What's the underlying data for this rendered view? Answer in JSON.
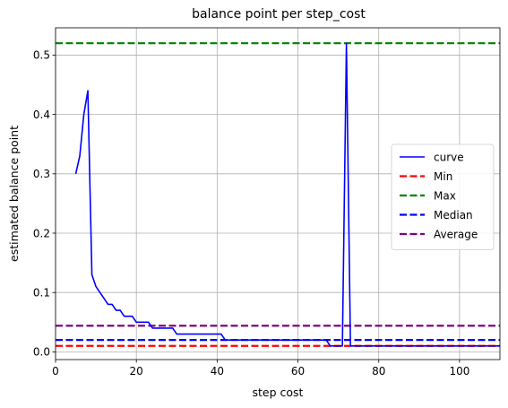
{
  "chart_data": {
    "type": "line",
    "title": "balance point per step_cost",
    "xlabel": "step cost",
    "ylabel": "estimated balance point",
    "xlim": [
      0,
      110
    ],
    "ylim": [
      -0.013,
      0.546
    ],
    "xticks": [
      0,
      20,
      40,
      60,
      80,
      100
    ],
    "yticks": [
      0.0,
      0.1,
      0.2,
      0.3,
      0.4,
      0.5
    ],
    "xtick_labels": [
      "0",
      "20",
      "40",
      "60",
      "80",
      "100"
    ],
    "ytick_labels": [
      "0.0",
      "0.1",
      "0.2",
      "0.3",
      "0.4",
      "0.5"
    ],
    "grid": true,
    "legend_position": "center-right",
    "series": [
      {
        "name": "curve",
        "color": "#0000ff",
        "style": "solid",
        "x": [
          5,
          6,
          7,
          8,
          9,
          10,
          11,
          12,
          13,
          14,
          15,
          16,
          17,
          18,
          19,
          20,
          21,
          22,
          23,
          24,
          25,
          26,
          27,
          28,
          29,
          30,
          31,
          32,
          33,
          34,
          35,
          36,
          37,
          38,
          39,
          40,
          41,
          42,
          43,
          44,
          45,
          46,
          47,
          48,
          49,
          50,
          51,
          52,
          53,
          54,
          55,
          56,
          57,
          58,
          59,
          60,
          61,
          62,
          63,
          64,
          65,
          66,
          67,
          68,
          69,
          70,
          71,
          72,
          73,
          74,
          75,
          76,
          77,
          78,
          79,
          80,
          81,
          82,
          83,
          84,
          85,
          86,
          87,
          88,
          89,
          90,
          91,
          92,
          93,
          94,
          95,
          96,
          97,
          98,
          99,
          100,
          101,
          102,
          103,
          104,
          105,
          106,
          107,
          108,
          109,
          110
        ],
        "y": [
          0.3,
          0.33,
          0.4,
          0.44,
          0.13,
          0.11,
          0.1,
          0.09,
          0.08,
          0.08,
          0.07,
          0.07,
          0.06,
          0.06,
          0.06,
          0.05,
          0.05,
          0.05,
          0.05,
          0.04,
          0.04,
          0.04,
          0.04,
          0.04,
          0.04,
          0.03,
          0.03,
          0.03,
          0.03,
          0.03,
          0.03,
          0.03,
          0.03,
          0.03,
          0.03,
          0.03,
          0.03,
          0.02,
          0.02,
          0.02,
          0.02,
          0.02,
          0.02,
          0.02,
          0.02,
          0.02,
          0.02,
          0.02,
          0.02,
          0.02,
          0.02,
          0.02,
          0.02,
          0.02,
          0.02,
          0.02,
          0.02,
          0.02,
          0.02,
          0.02,
          0.02,
          0.02,
          0.02,
          0.01,
          0.01,
          0.01,
          0.01,
          0.52,
          0.01,
          0.01,
          0.01,
          0.01,
          0.01,
          0.01,
          0.01,
          0.01,
          0.01,
          0.01,
          0.01,
          0.01,
          0.01,
          0.01,
          0.01,
          0.01,
          0.01,
          0.01,
          0.01,
          0.01,
          0.01,
          0.01,
          0.01,
          0.01,
          0.01,
          0.01,
          0.01,
          0.01,
          0.01,
          0.01,
          0.01,
          0.01,
          0.01,
          0.01,
          0.01,
          0.01,
          0.01,
          0.01
        ]
      },
      {
        "name": "Min",
        "color": "#ff0000",
        "style": "dashed",
        "value": 0.01
      },
      {
        "name": "Max",
        "color": "#008000",
        "style": "dashed",
        "value": 0.52
      },
      {
        "name": "Median",
        "color": "#0000ff",
        "style": "dashed",
        "value": 0.02
      },
      {
        "name": "Average",
        "color": "#800080",
        "style": "dashed",
        "value": 0.044
      }
    ]
  }
}
